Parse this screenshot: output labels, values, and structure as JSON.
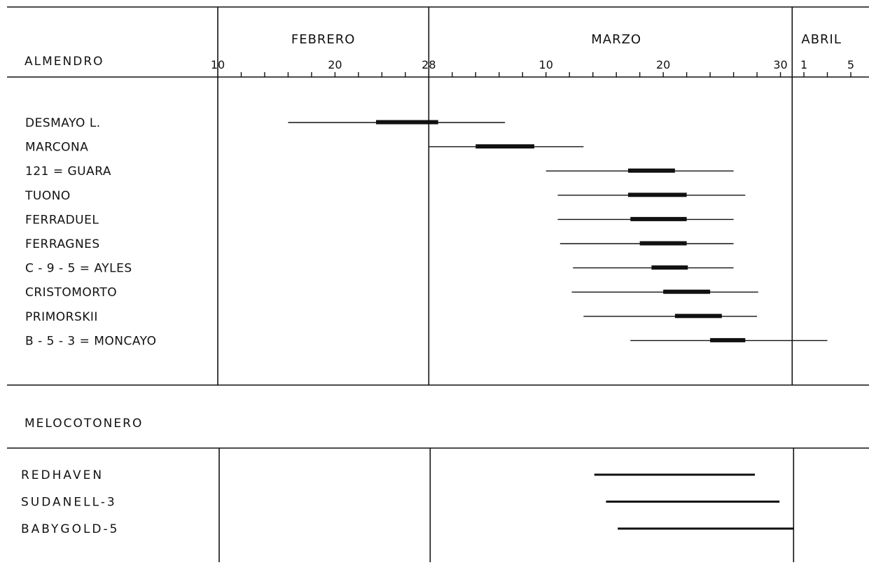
{
  "chart_data": {
    "type": "gantt",
    "x_axis": {
      "unit": "day",
      "months": [
        {
          "name": "FEBRERO",
          "start": 10,
          "end": 28
        },
        {
          "name": "MARZO",
          "start": 29,
          "end": 59
        },
        {
          "name": "ABRIL",
          "start": 59,
          "end": 64
        }
      ],
      "tick_labels": [
        {
          "label": "10",
          "value": 10
        },
        {
          "label": "20",
          "value": 20
        },
        {
          "label": "28",
          "value": 28
        },
        {
          "label": "10",
          "value": 38
        },
        {
          "label": "20",
          "value": 48
        },
        {
          "label": "30",
          "value": 58
        },
        {
          "label": "1",
          "value": 60
        },
        {
          "label": "5",
          "value": 64
        }
      ],
      "range": [
        10,
        64
      ]
    },
    "groups": [
      {
        "label": "ALMENDRO",
        "items": [
          {
            "name": "DESMAYO L.",
            "start": 16.0,
            "full_start": 23.5,
            "full_end": 28.8,
            "end": 34.5
          },
          {
            "name": "MARCONA",
            "start": 28.0,
            "full_start": 32.0,
            "full_end": 37.0,
            "end": 41.2
          },
          {
            "name": "121 = GUARA",
            "start": 38.0,
            "full_start": 45.0,
            "full_end": 49.0,
            "end": 54.0
          },
          {
            "name": "TUONO",
            "start": 39.0,
            "full_start": 45.0,
            "full_end": 50.0,
            "end": 55.0
          },
          {
            "name": "FERRADUEL",
            "start": 39.0,
            "full_start": 45.2,
            "full_end": 50.0,
            "end": 54.0
          },
          {
            "name": "FERRAGNES",
            "start": 39.2,
            "full_start": 46.0,
            "full_end": 50.0,
            "end": 54.0
          },
          {
            "name": "C - 9 - 5 = AYLES",
            "start": 40.3,
            "full_start": 47.0,
            "full_end": 50.1,
            "end": 54.0
          },
          {
            "name": "CRISTOMORTO",
            "start": 40.2,
            "full_start": 48.0,
            "full_end": 52.0,
            "end": 56.1
          },
          {
            "name": "PRIMORSKII",
            "start": 41.2,
            "full_start": 49.0,
            "full_end": 53.0,
            "end": 56.0
          },
          {
            "name": "B - 5 - 3 = MONCAYO",
            "start": 45.2,
            "full_start": 52.0,
            "full_end": 55.0,
            "end": 62.0
          }
        ]
      },
      {
        "label": "MELOCOTONERO",
        "items": [
          {
            "name": "REDHAVEN",
            "start": 42.0,
            "end": 55.7
          },
          {
            "name": "SUDANELL-3",
            "start": 43.0,
            "end": 57.8
          },
          {
            "name": "BABYGOLD-5",
            "start": 44.0,
            "end": 59.0
          }
        ]
      }
    ]
  }
}
